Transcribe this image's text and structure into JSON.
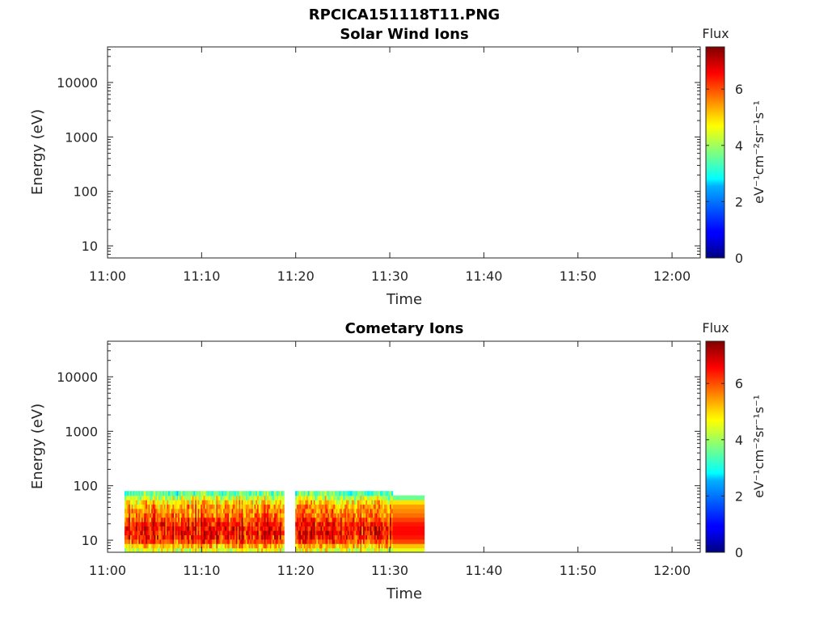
{
  "figure": {
    "title": "RPCICA151118T11.PNG"
  },
  "chart_data": [
    {
      "type": "heatmap",
      "title": "Solar Wind Ions",
      "xlabel": "Time",
      "ylabel": "Energy (eV)",
      "x_ticks": [
        "11:00",
        "11:10",
        "11:20",
        "11:30",
        "11:40",
        "11:50",
        "12:00"
      ],
      "xlim_minutes": [
        0,
        63
      ],
      "y_scale": "log",
      "ylim": [
        6,
        45000
      ],
      "y_ticks": [
        {
          "value": 10,
          "label": "10"
        },
        {
          "value": 100,
          "label": "100"
        },
        {
          "value": 1000,
          "label": "1000"
        },
        {
          "value": 10000,
          "label": "10000"
        }
      ],
      "colorbar": {
        "title": "Flux",
        "label": "eV⁻¹cm⁻²sr⁻¹s⁻¹",
        "range": [
          0,
          7.5
        ],
        "ticks": [
          "0",
          "2",
          "4",
          "6"
        ],
        "colormap": "jet"
      },
      "data": []
    },
    {
      "type": "heatmap",
      "title": "Cometary Ions",
      "xlabel": "Time",
      "ylabel": "Energy (eV)",
      "x_ticks": [
        "11:00",
        "11:10",
        "11:20",
        "11:30",
        "11:40",
        "11:50",
        "12:00"
      ],
      "xlim_minutes": [
        0,
        63
      ],
      "y_scale": "log",
      "ylim": [
        6,
        45000
      ],
      "y_ticks": [
        {
          "value": 10,
          "label": "10"
        },
        {
          "value": 100,
          "label": "100"
        },
        {
          "value": 1000,
          "label": "1000"
        },
        {
          "value": 10000,
          "label": "10000"
        }
      ],
      "colorbar": {
        "title": "Flux",
        "label": "eV⁻¹cm⁻²sr⁻¹s⁻¹",
        "range": [
          0,
          7.5
        ],
        "ticks": [
          "0",
          "2",
          "4",
          "6"
        ],
        "colormap": "jet"
      },
      "data_extent": {
        "time_minutes": [
          1.8,
          33.7
        ],
        "energy_ev": [
          6,
          80
        ],
        "data_gaps_minutes": [
          [
            18.8,
            20.0
          ]
        ],
        "reduced_resolution_after_minutes": 30.3
      },
      "approx_flux_by_energy": [
        {
          "energy_ev": 7,
          "flux": 4.5
        },
        {
          "energy_ev": 10,
          "flux": 6.3
        },
        {
          "energy_ev": 15,
          "flux": 6.6
        },
        {
          "energy_ev": 20,
          "flux": 6.4
        },
        {
          "energy_ev": 30,
          "flux": 5.7
        },
        {
          "energy_ev": 45,
          "flux": 5.3
        },
        {
          "energy_ev": 65,
          "flux": 4.0
        },
        {
          "energy_ev": 80,
          "flux": 3.2
        }
      ]
    }
  ]
}
